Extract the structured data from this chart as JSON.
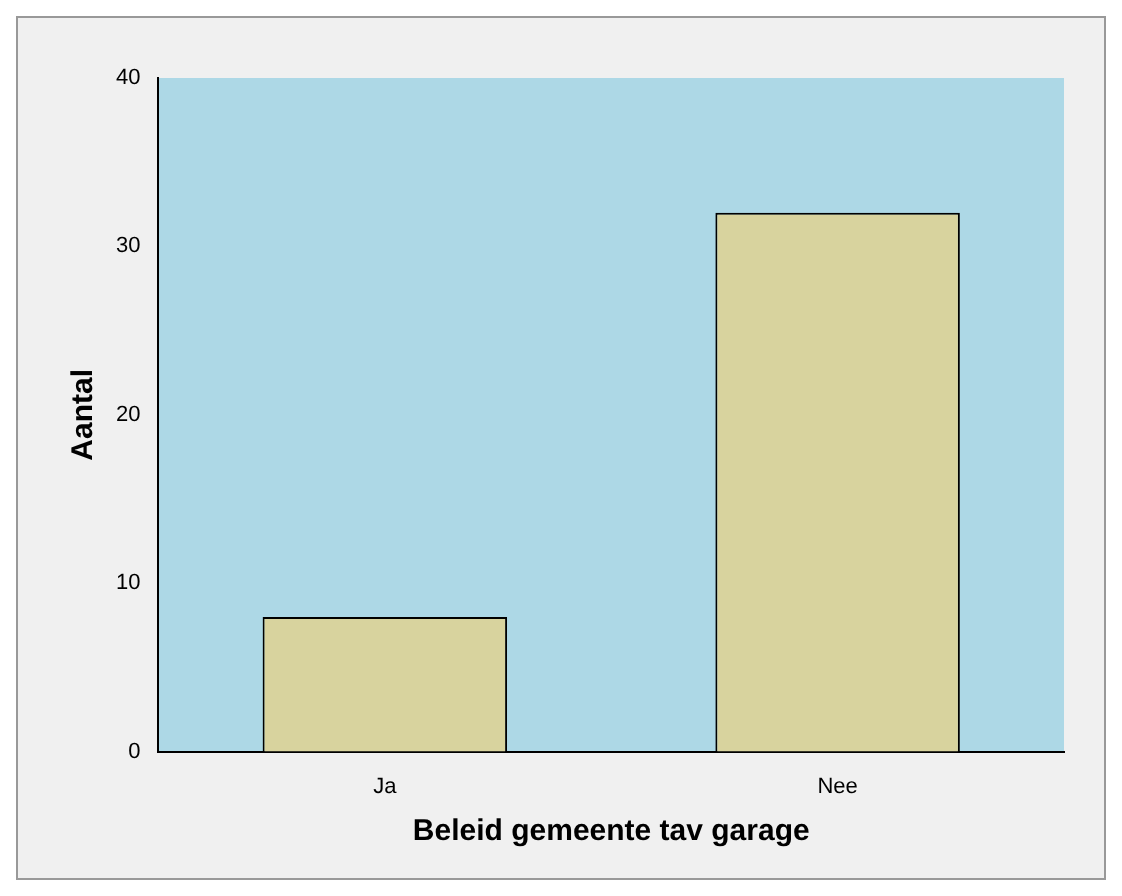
{
  "chart_data": {
    "type": "bar",
    "xlabel": "Beleid gemeente tav garage",
    "ylabel": "Aantal",
    "categories": [
      "Ja",
      "Nee"
    ],
    "values": [
      8,
      32
    ],
    "color": "#d8d39e",
    "ylim": [
      0,
      40
    ],
    "yticks": [
      0,
      10,
      20,
      30,
      40
    ],
    "grid": false,
    "legend": false
  }
}
